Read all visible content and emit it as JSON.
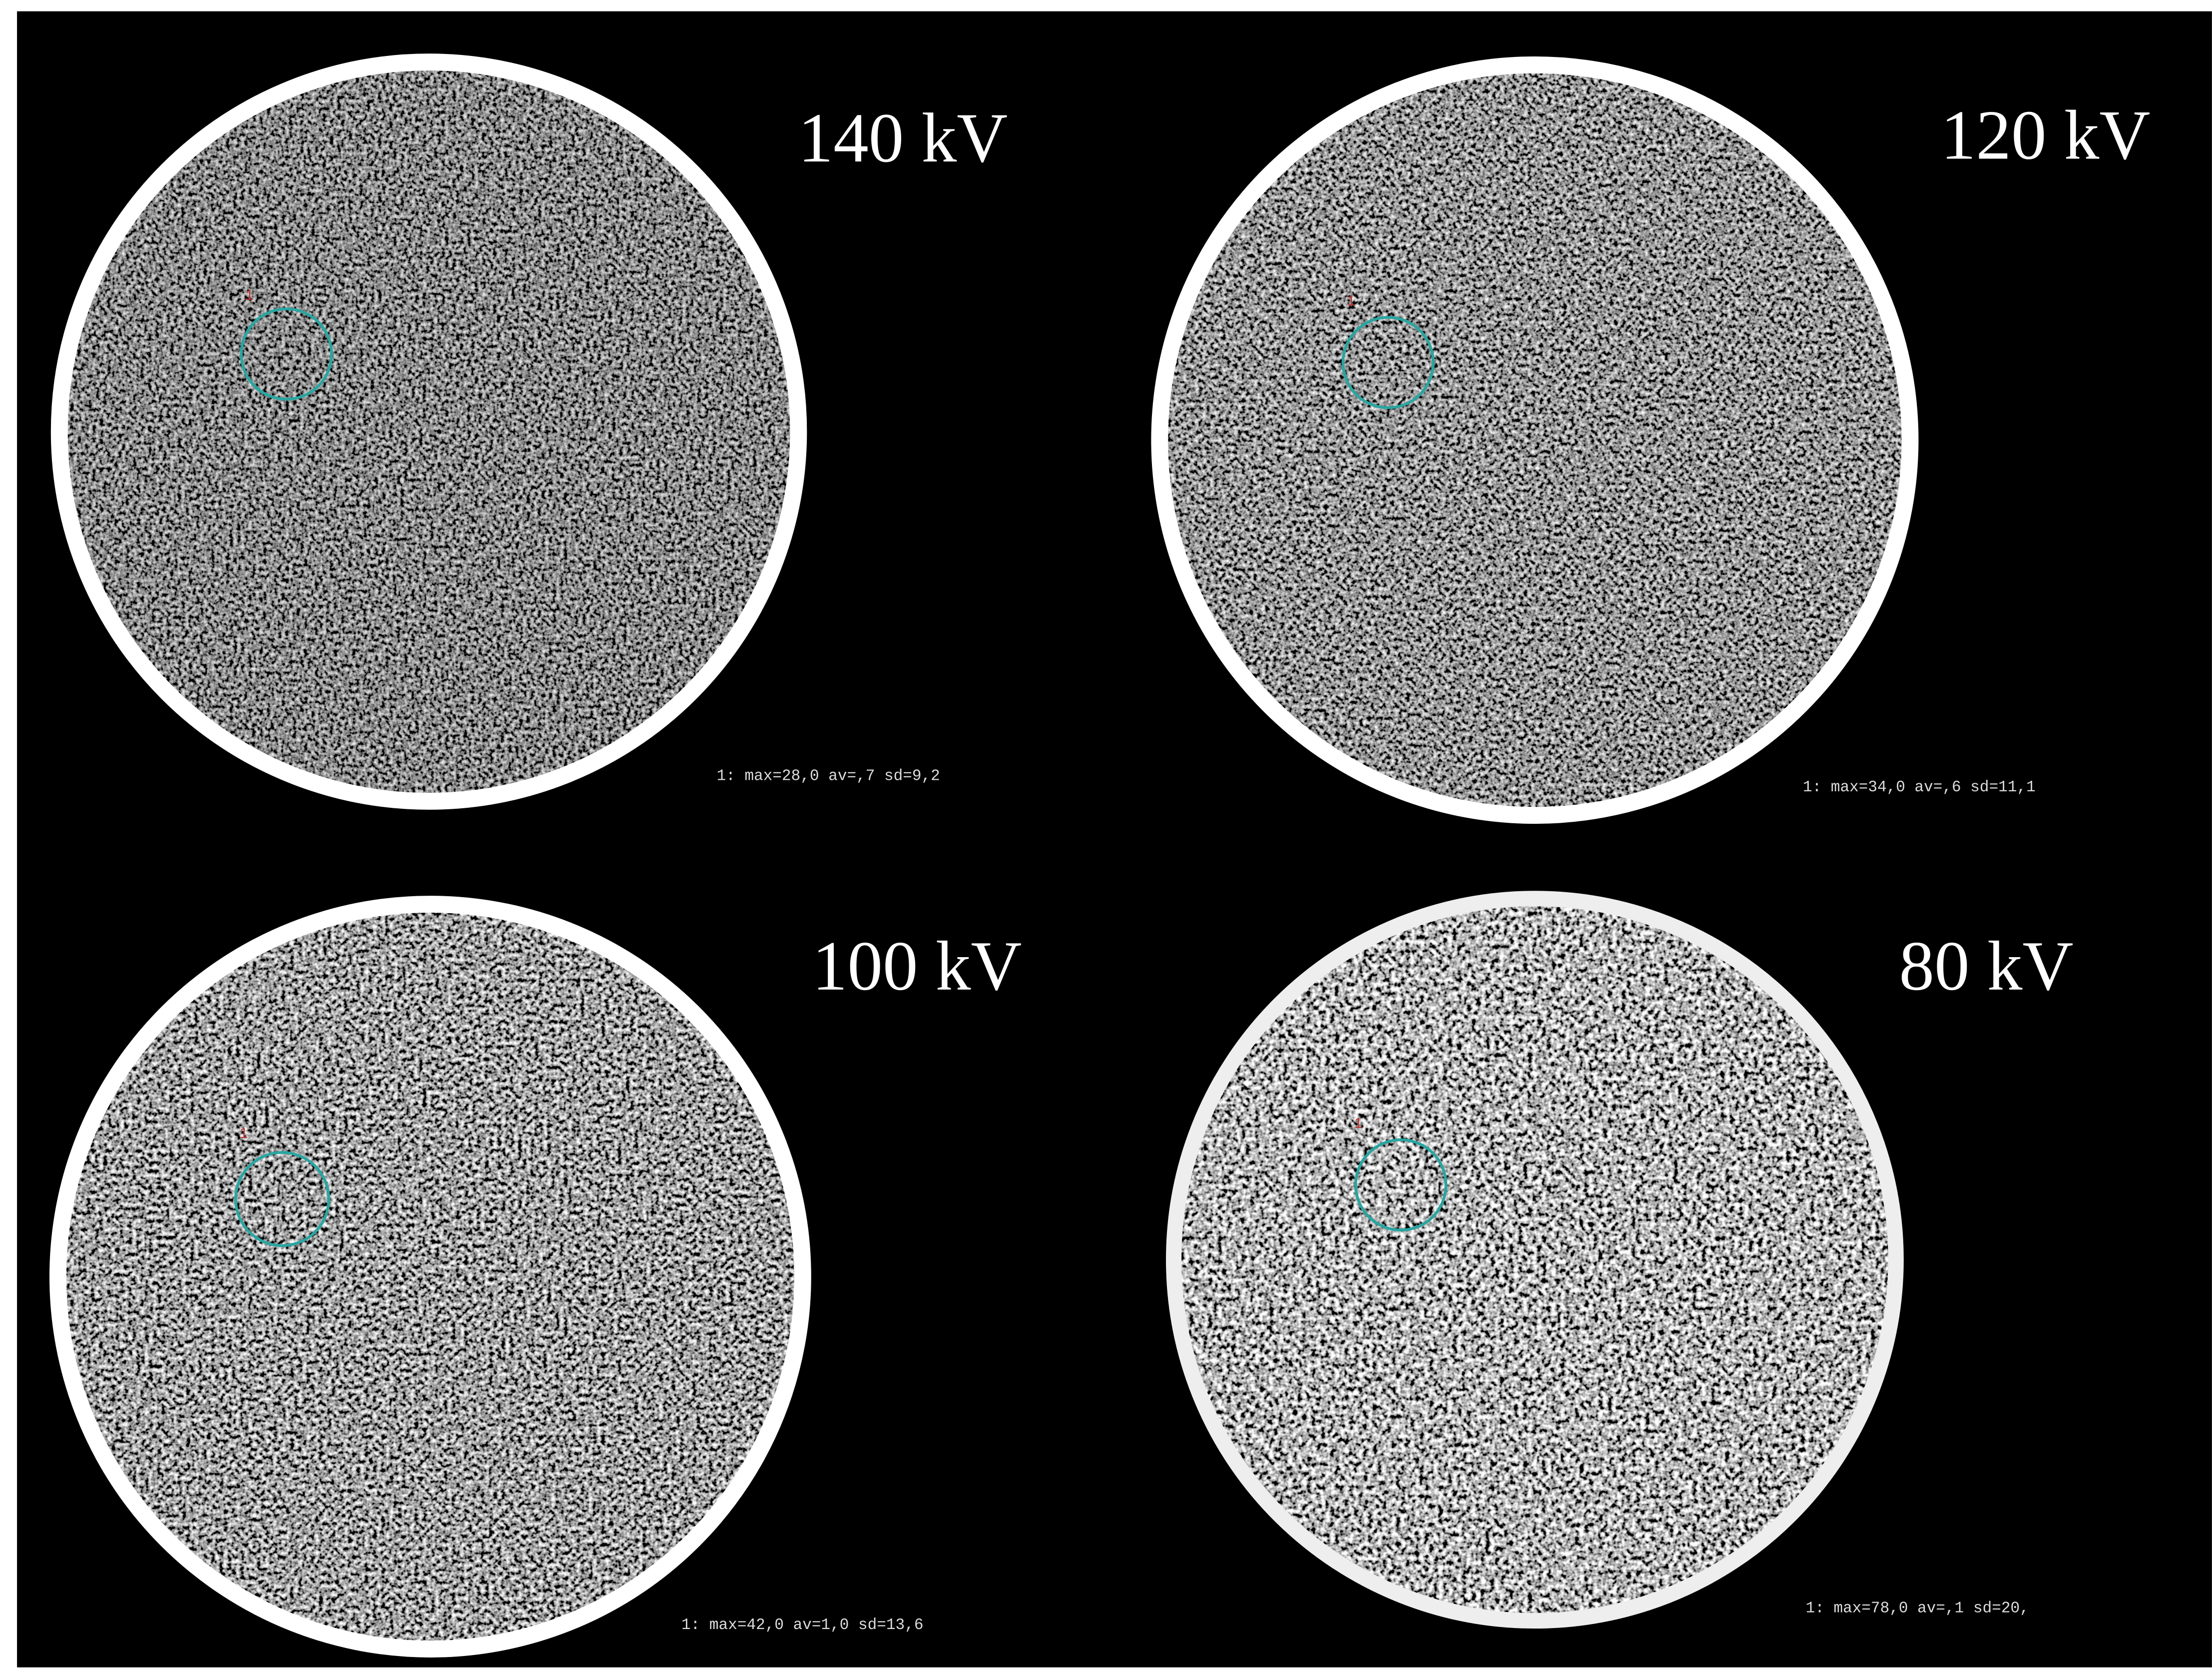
{
  "panels": [
    {
      "label": "140 kV",
      "roi_label": "1",
      "stats": "1: max=28,0 av=,7 sd=9,2"
    },
    {
      "label": "120 kV",
      "roi_label": "1",
      "stats": "1: max=34,0 av=,6 sd=11,1"
    },
    {
      "label": "100 kV",
      "roi_label": "1",
      "stats": "1: max=42,0 av=1,0 sd=13,6"
    },
    {
      "label": "80 kV",
      "roi_label": "1",
      "stats": "1: max=78,0 av=,1 sd=20,"
    }
  ]
}
